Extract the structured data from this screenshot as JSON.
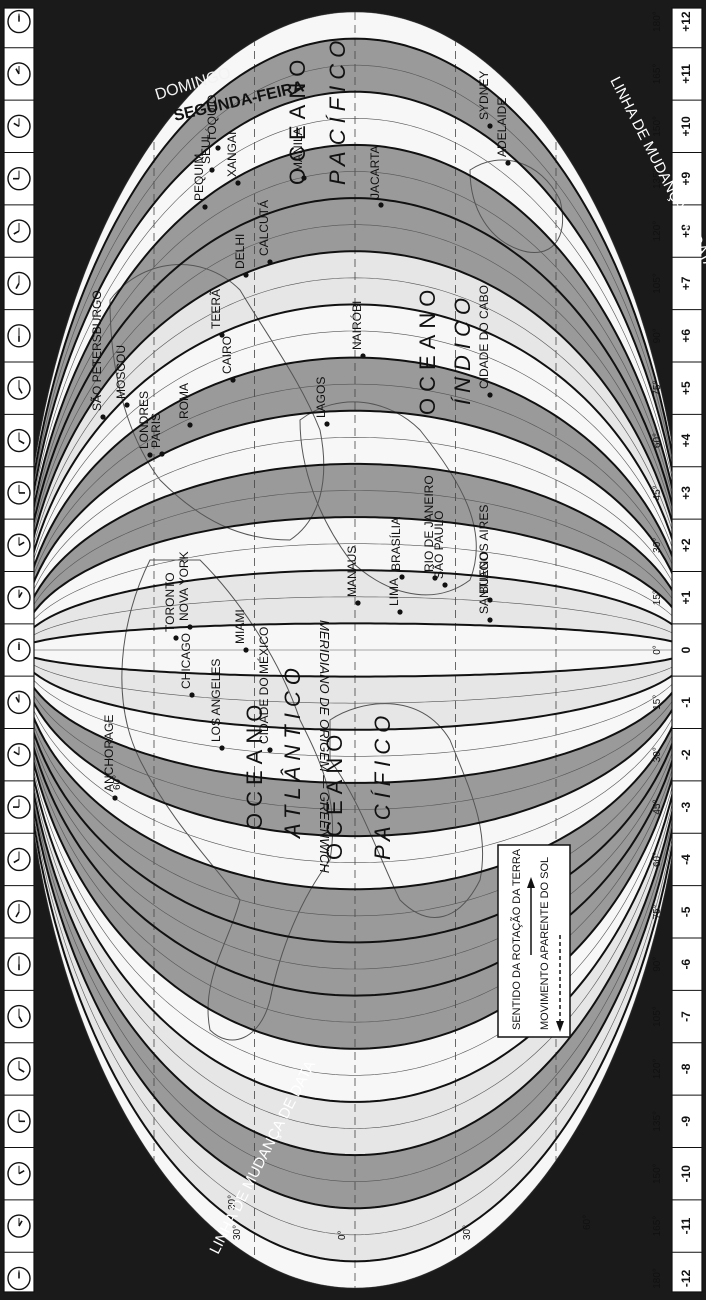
{
  "utc_offsets": [
    "-12",
    "-11",
    "-10",
    "-9",
    "-8",
    "-7",
    "-6",
    "-5",
    "-4",
    "-3",
    "-2",
    "-1",
    "0",
    "+1",
    "+2",
    "+3",
    "+4",
    "+5",
    "+6",
    "+7",
    "+8",
    "+9",
    "+10",
    "+11",
    "+12"
  ],
  "longitude_ticks": [
    "180°",
    "165°",
    "150°",
    "135°",
    "120°",
    "105°",
    "90°",
    "75°",
    "60°",
    "45°",
    "30°",
    "15°",
    "0°",
    "15°",
    "30°",
    "45°",
    "60°",
    "75°",
    "90°",
    "105°",
    "120°",
    "135°",
    "150°",
    "165°",
    "180°"
  ],
  "latitude_labels": [
    "30°",
    "0°",
    "30°",
    "60°",
    "60°",
    "30°"
  ],
  "date_line_label": "LINHA DE MUDANÇA DE DATA",
  "day_labels": {
    "sunday": "DOMINGO",
    "monday": "SEGUNDA-FEIRA"
  },
  "meridian_label": "MERIDIANO DE ORIGEM — GREENWICH",
  "oceans": [
    {
      "name": "OCEANO PACÍFICO",
      "word1": "OCEANO",
      "word2": "PACÍFICO"
    },
    {
      "name": "OCEANO ATLÂNTICO",
      "word1": "OCEANO",
      "word2": "ATLÂNTICO"
    },
    {
      "name": "OCEANO ÍNDICO",
      "word1": "OCEANO",
      "word2": "ÍNDICO"
    },
    {
      "name": "OCEANO PACÍFICO",
      "word1": "OCEANO",
      "word2": "PACÍFICO"
    }
  ],
  "cities": [
    "ANCHORAGE",
    "LOS ANGELES",
    "CIDADE DO MÉXICO",
    "CHICAGO",
    "TORONTO",
    "NOVA YORK",
    "MIAMI",
    "LIMA",
    "MANAUS",
    "BRASÍLIA",
    "RIO DE JANEIRO",
    "SÃO PAULO",
    "BUENOS AIRES",
    "SANTIAGO",
    "LONDRES",
    "PARIS",
    "ROMA",
    "LAGOS",
    "CAIRO",
    "SÃO PETERSBURGO",
    "MOSCOU",
    "NAIRÓBI",
    "CIDADE DO CABO",
    "TEERÃ",
    "DELHI",
    "CALCUTÁ",
    "PEQUIM",
    "XANGAI",
    "SEUL",
    "TÓQUIO",
    "MANILA",
    "JACARTA",
    "ADELAIDE",
    "SYDNEY"
  ],
  "legend": {
    "rotation": "SENTIDO DA ROTAÇÃO DA TERRA",
    "sun": "MOVIMENTO APARENTE DO SOL"
  }
}
